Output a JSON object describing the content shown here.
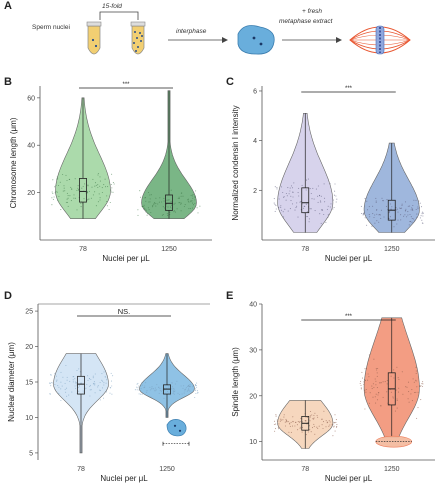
{
  "schematic": {
    "panel_label": "A",
    "sperm_label": "Sperm nuclei",
    "fold_label": "15-fold",
    "arrow1_label": "interphase",
    "arrow2_label_line1": "+ fresh",
    "arrow2_label_line2": "metaphase extract"
  },
  "colors": {
    "green": "#8fce8f",
    "green_dark": "#4e9e5e",
    "lavender": "#c9c4e6",
    "blue": "#7f9fd1",
    "lightblue": "#c6dcf2",
    "skyblue": "#69aedc",
    "peach": "#f3c9a8",
    "orange": "#ef7c5a",
    "spindle": "#e8552f"
  },
  "chart_data": [
    {
      "panel": "B",
      "type": "violin",
      "categories": [
        "78",
        "1250"
      ],
      "xlabel": "Nuclei per μL",
      "ylabel": "Chromosome length (μm)",
      "ylim": [
        0,
        65
      ],
      "yticks": [
        "20",
        "40",
        "60"
      ],
      "significance": "***",
      "series": [
        {
          "category": "78",
          "min": 9,
          "q1": 16,
          "median": 20.5,
          "q3": 26,
          "max": 60
        },
        {
          "category": "1250",
          "min": 9,
          "q1": 12.5,
          "median": 15.5,
          "q3": 19,
          "max": 63
        }
      ]
    },
    {
      "panel": "C",
      "type": "violin",
      "categories": [
        "78",
        "1250"
      ],
      "xlabel": "Nuclei per μL",
      "ylabel": "Normalized condensin I intensity",
      "ylim": [
        0,
        6.2
      ],
      "yticks": [
        "2",
        "4",
        "6"
      ],
      "significance": "***",
      "series": [
        {
          "category": "78",
          "min": 0.3,
          "q1": 1.1,
          "median": 1.5,
          "q3": 2.1,
          "max": 5.1
        },
        {
          "category": "1250",
          "min": 0.3,
          "q1": 0.8,
          "median": 1.2,
          "q3": 1.6,
          "max": 3.9
        }
      ]
    },
    {
      "panel": "D",
      "type": "violin",
      "categories": [
        "78",
        "1250"
      ],
      "xlabel": "Nuclei per μL",
      "ylabel": "Nuclear diameter (μm)",
      "ylim": [
        4,
        26
      ],
      "yticks": [
        "5",
        "10",
        "15",
        "20",
        "25"
      ],
      "significance": "NS.",
      "series": [
        {
          "category": "78",
          "min": 5,
          "q1": 13.3,
          "median": 14.7,
          "q3": 15.8,
          "max": 19
        },
        {
          "category": "1250",
          "min": 10,
          "q1": 13.3,
          "median": 14,
          "q3": 14.6,
          "max": 19
        }
      ]
    },
    {
      "panel": "E",
      "type": "violin",
      "categories": [
        "78",
        "1250"
      ],
      "xlabel": "Nuclei per μL",
      "ylabel": "Spindle length (μm)",
      "ylim": [
        6,
        40
      ],
      "yticks": [
        "10",
        "20",
        "30",
        "40"
      ],
      "significance": "***",
      "series": [
        {
          "category": "78",
          "min": 8.5,
          "q1": 12.5,
          "median": 14,
          "q3": 15.5,
          "max": 19
        },
        {
          "category": "1250",
          "min": 11,
          "q1": 18,
          "median": 21.5,
          "q3": 25,
          "max": 37
        }
      ]
    }
  ]
}
